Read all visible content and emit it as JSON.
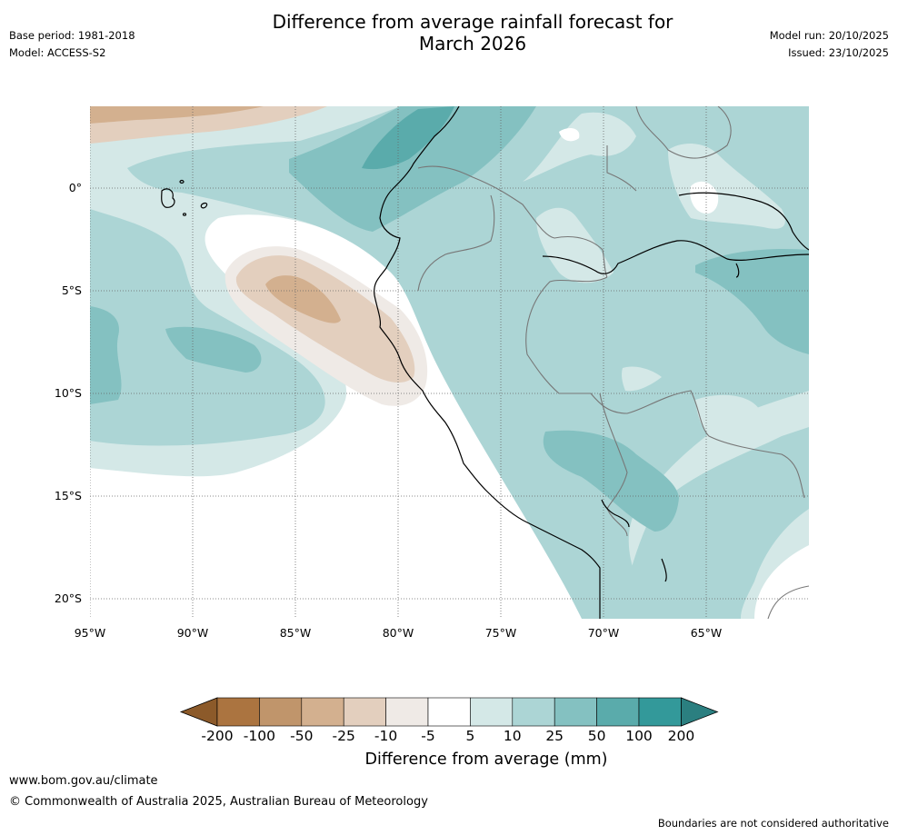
{
  "header": {
    "title_line1": "Difference from average rainfall forecast for",
    "title_line2": "March 2026",
    "base_period": "Base period: 1981-2018",
    "model": "Model: ACCESS-S2",
    "model_run": "Model run: 20/10/2025",
    "issued": "Issued: 23/10/2025"
  },
  "map": {
    "lat_labels": [
      "0°",
      "5°S",
      "10°S",
      "15°S",
      "20°S"
    ],
    "lon_labels": [
      "95°W",
      "90°W",
      "85°W",
      "80°W",
      "75°W",
      "70°W",
      "65°W"
    ]
  },
  "colorbar": {
    "ticks": [
      "-200",
      "-100",
      "-50",
      "-25",
      "-10",
      "-5",
      "5",
      "10",
      "25",
      "50",
      "100",
      "200"
    ],
    "colors": [
      "#8c5a2a",
      "#ab7440",
      "#c0956b",
      "#d3b08f",
      "#e3cfbe",
      "#efeae6",
      "#ffffff",
      "#d4e8e7",
      "#acd5d5",
      "#84c1c1",
      "#5aabab",
      "#33999a",
      "#2b7f80"
    ],
    "title": "Difference from average (mm)"
  },
  "footer": {
    "url": "www.bom.gov.au/climate",
    "copyright": "© Commonwealth of Australia 2025, Australian Bureau of Meteorology",
    "disclaimer": "Boundaries are not considered authoritative"
  }
}
